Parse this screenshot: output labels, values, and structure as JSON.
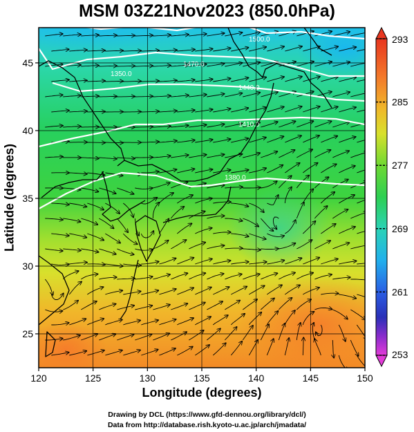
{
  "title": "MSM 03Z21Nov2023 (850.0hPa)",
  "xlabel": "Longitude (degrees)",
  "ylabel": "Latitude  (degrees)",
  "credits": [
    "Drawing by DCL (https://www.gfd-dennou.org/library/dcl/)",
    "Data from http://database.rish.kyoto-u.ac.jp/arch/jmadata/"
  ],
  "map": {
    "lon_range": [
      120,
      150
    ],
    "lat_range": [
      22.5,
      47.6
    ],
    "x_ticks": [
      "120",
      "125",
      "130",
      "135",
      "140",
      "145",
      "150"
    ],
    "y_ticks": [
      "25",
      "30",
      "35",
      "40",
      "45"
    ],
    "x_tick_values": [
      120,
      125,
      130,
      135,
      140,
      145,
      150
    ],
    "y_tick_values": [
      25,
      30,
      35,
      40,
      45
    ],
    "grid": true,
    "colorbar_ticks": [
      "293",
      "285",
      "277",
      "269",
      "261",
      "253"
    ],
    "colorbar_values": [
      293,
      285,
      277,
      269,
      261,
      253
    ],
    "colorbar_range": [
      253,
      293
    ],
    "contours": [
      {
        "label": "1500.0",
        "lat": 46.6
      },
      {
        "label": "1470.0",
        "lat": 45.3
      },
      {
        "label": "1440.0",
        "lat": 43.8
      },
      {
        "label": "1410.0",
        "lat": 42.0
      },
      {
        "label": "1380.0",
        "lat": 39.7
      },
      {
        "label": "1350.0",
        "lat": 36.8
      }
    ]
  },
  "colors": {
    "contour": "#ffffff",
    "coast": "#000000",
    "vector": "#000000"
  }
}
